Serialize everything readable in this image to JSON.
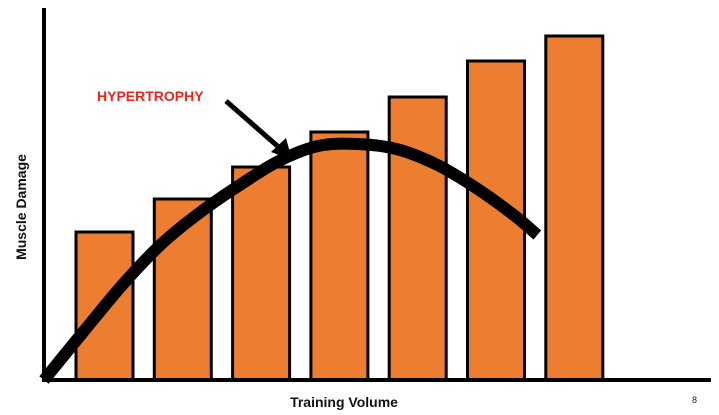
{
  "chart_data": {
    "type": "bar",
    "title": "",
    "xlabel": "Training Volume",
    "ylabel": "Muscle Damage",
    "categories": [
      "",
      "",
      "",
      "",
      "",
      "",
      ""
    ],
    "values": [
      148,
      181,
      213,
      248,
      283,
      319,
      344
    ],
    "ylim": [
      0,
      372
    ],
    "grid": false,
    "bar_color": "#ED7D31",
    "bar_edge_color": "#000000",
    "curve": {
      "label": "HYPERTROPHY",
      "label_color": "#E8261E",
      "color": "#000000",
      "shape": "rises to a peak near the middle of the volume range, then declines",
      "points": [
        {
          "x": 0.0,
          "y": 0
        },
        {
          "x": 0.5,
          "y": 48
        },
        {
          "x": 1.0,
          "y": 95
        },
        {
          "x": 1.5,
          "y": 136
        },
        {
          "x": 2.0,
          "y": 168
        },
        {
          "x": 2.5,
          "y": 195
        },
        {
          "x": 3.0,
          "y": 219
        },
        {
          "x": 3.5,
          "y": 234
        },
        {
          "x": 4.0,
          "y": 236
        },
        {
          "x": 4.5,
          "y": 231
        },
        {
          "x": 5.0,
          "y": 216
        },
        {
          "x": 5.5,
          "y": 193
        },
        {
          "x": 6.0,
          "y": 165
        },
        {
          "x": 6.3,
          "y": 145
        }
      ]
    }
  },
  "page_number": "8"
}
